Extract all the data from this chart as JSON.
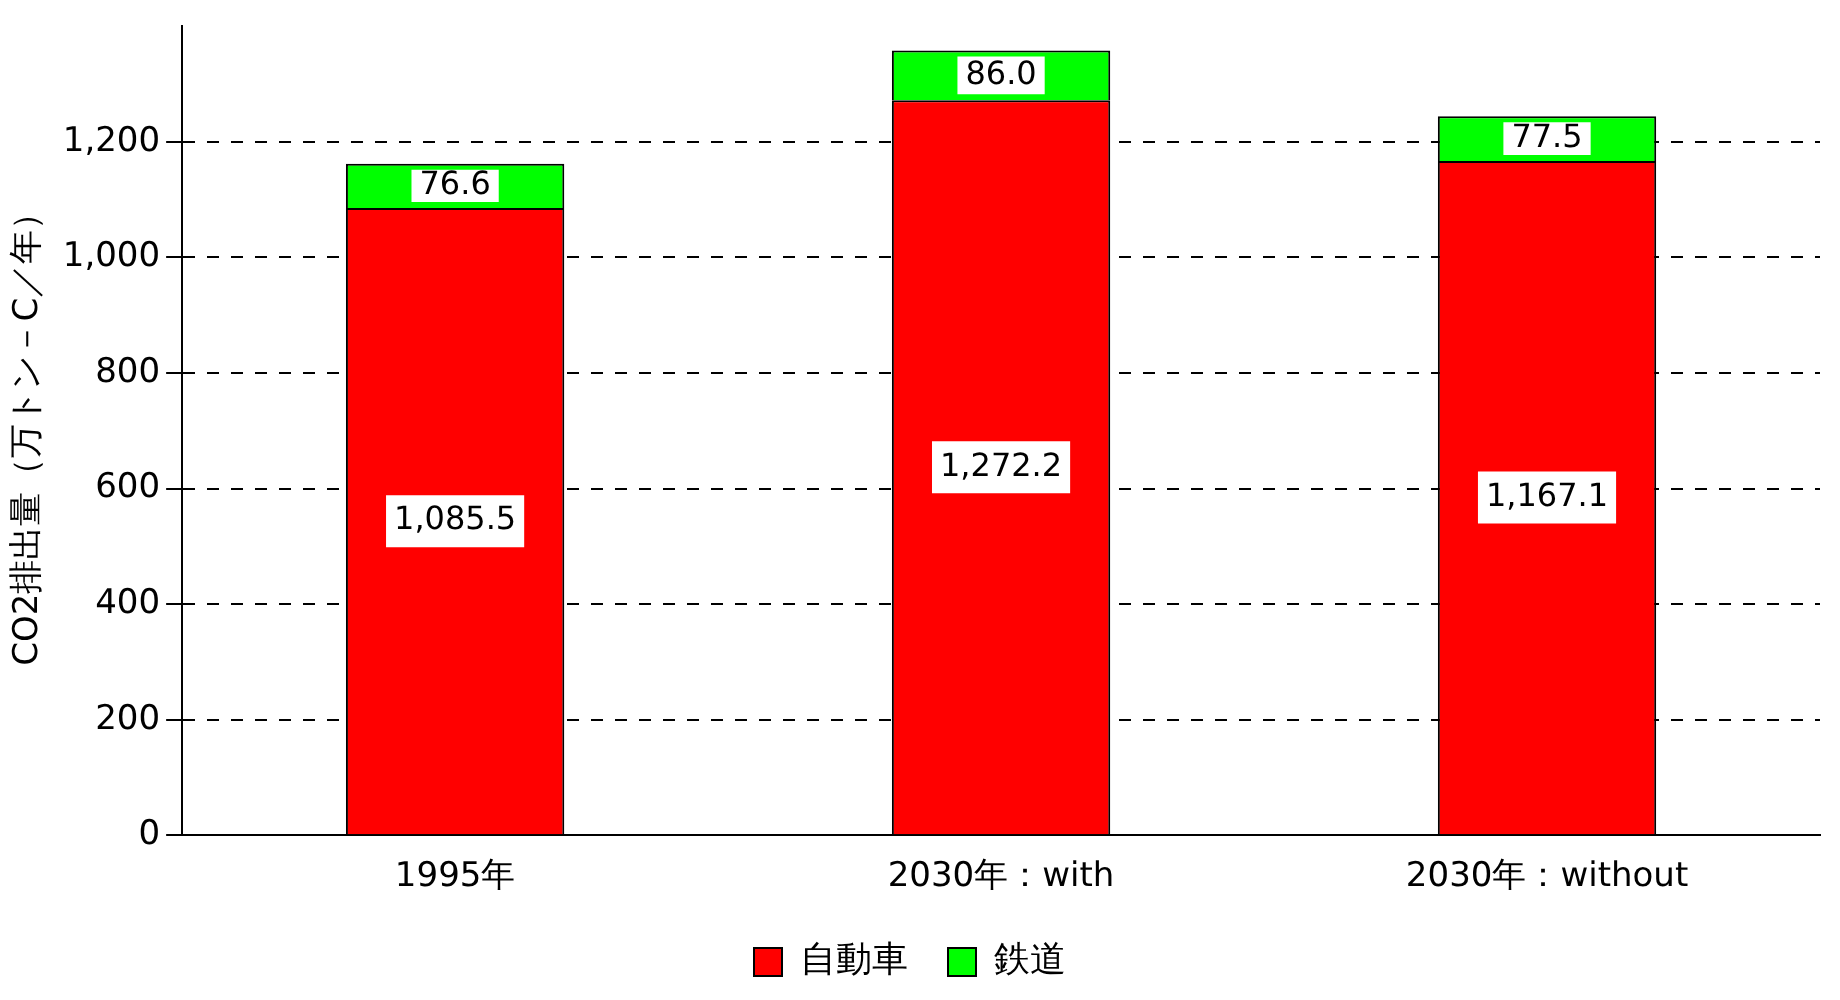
{
  "chart_data": {
    "type": "bar",
    "ylabel": "CO2排出量（万トン－C／年）",
    "categories": [
      "1995年",
      "2030年：with",
      "2030年：without"
    ],
    "stacked": true,
    "series": [
      {
        "name": "自動車",
        "color": "#ff0000",
        "values": [
          1085.5,
          1272.2,
          1167.1
        ],
        "value_labels": [
          "1,085.5",
          "1,272.2",
          "1,167.1"
        ]
      },
      {
        "name": "鉄道",
        "color": "#00ff00",
        "values": [
          76.6,
          86.0,
          77.5
        ],
        "value_labels": [
          "76.6",
          "86.0",
          "77.5"
        ]
      }
    ],
    "ylim": [
      0,
      1400
    ],
    "yticks": [
      0,
      200,
      400,
      600,
      800,
      {
        "value": 1000,
        "label": "1,000"
      },
      {
        "value": 1200,
        "label": "1,200"
      }
    ],
    "grid": "y",
    "legend": "bottom"
  }
}
